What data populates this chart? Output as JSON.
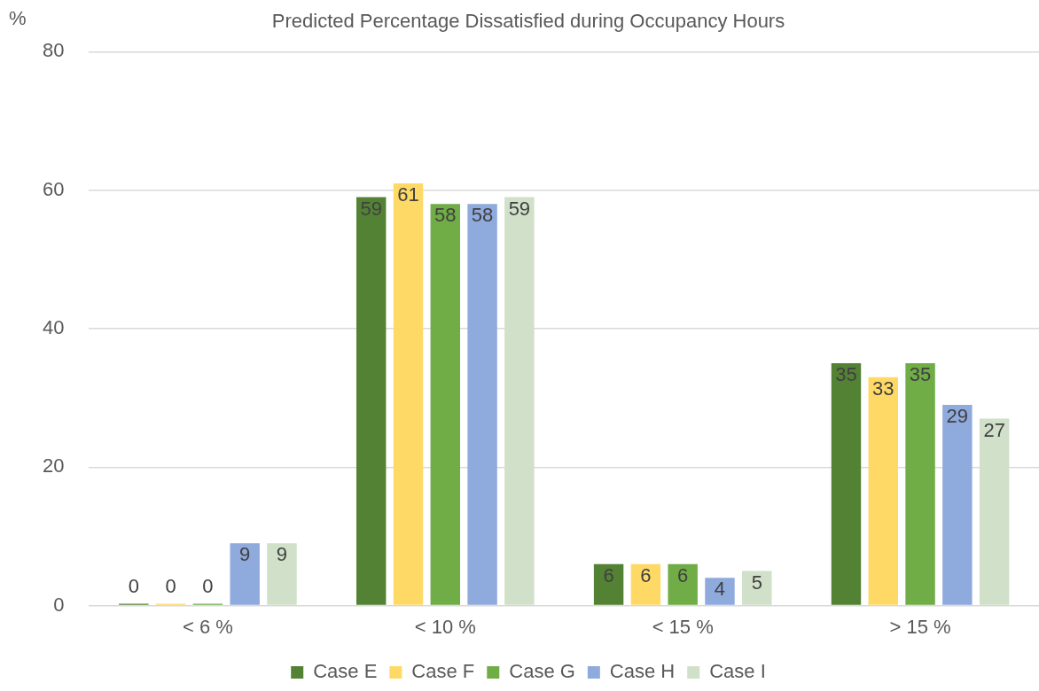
{
  "chart_data": {
    "type": "bar",
    "title": "Predicted Percentage Dissatisfied during Occupancy Hours",
    "ylabel": "%",
    "categories": [
      "< 6 %",
      "< 10 %",
      "< 15 %",
      "> 15 %"
    ],
    "series": [
      {
        "name": "Case E",
        "color": "#548235",
        "values": [
          0,
          59,
          6,
          35
        ]
      },
      {
        "name": "Case F",
        "color": "#ffd966",
        "values": [
          0,
          61,
          6,
          33
        ]
      },
      {
        "name": "Case G",
        "color": "#70ad47",
        "values": [
          0,
          58,
          6,
          35
        ]
      },
      {
        "name": "Case H",
        "color": "#8faadc",
        "values": [
          9,
          58,
          4,
          29
        ]
      },
      {
        "name": "Case I",
        "color": "#d0e0c9",
        "values": [
          9,
          59,
          5,
          27
        ]
      }
    ],
    "ylim": [
      0,
      80
    ],
    "yticks": [
      0,
      20,
      40,
      60,
      80
    ],
    "grid": "y",
    "legend": "bottom",
    "data_labels": true
  }
}
